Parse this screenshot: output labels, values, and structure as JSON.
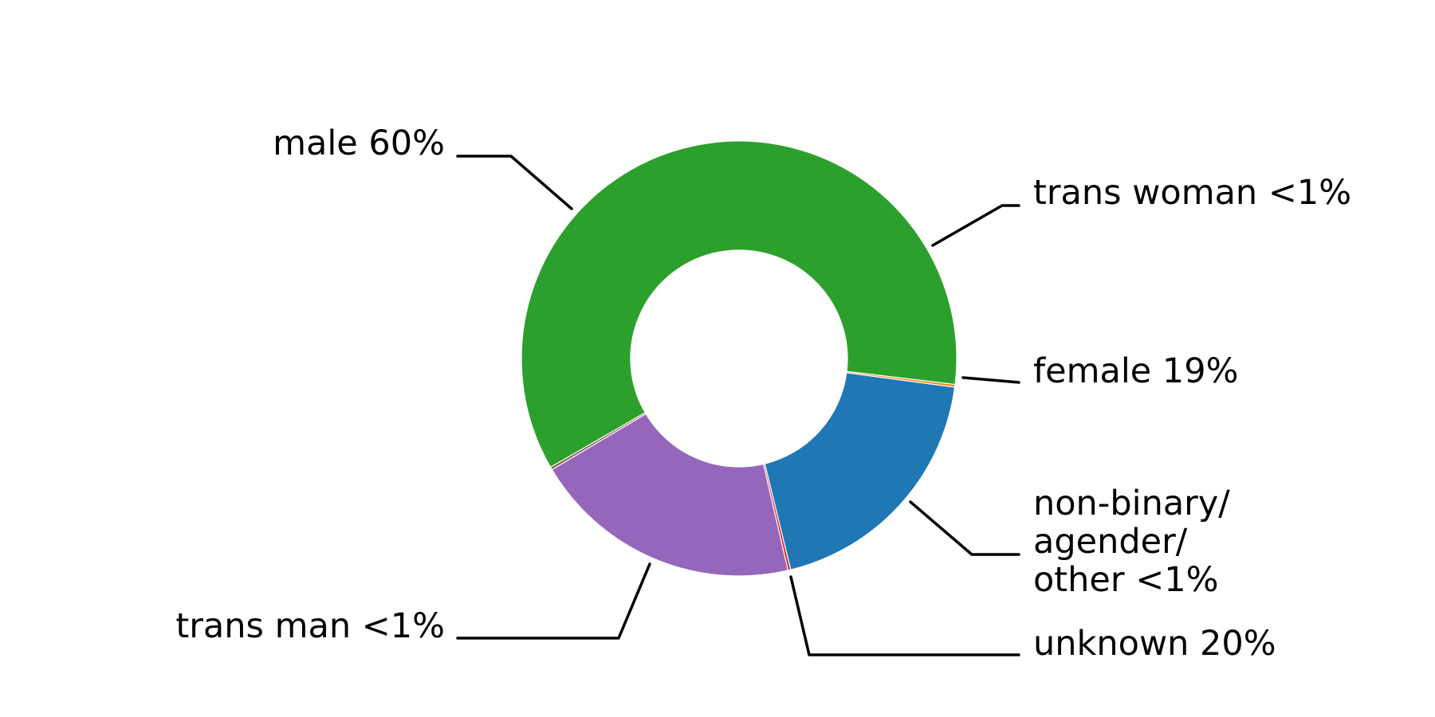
{
  "chart_data": {
    "type": "pie",
    "variant": "donut",
    "title": "",
    "slices": [
      {
        "label": "male 60%",
        "value": 60,
        "color": "#2ca02c"
      },
      {
        "label": "trans woman <1%",
        "value": 0.2,
        "color": "#ff7f0e"
      },
      {
        "label": "female 19%",
        "value": 19,
        "color": "#1f77b4"
      },
      {
        "label": "non-binary/\nagender/\nother <1%",
        "value": 0.2,
        "color": "#d62728"
      },
      {
        "label": "unknown 20%",
        "value": 20,
        "color": "#9467bd"
      },
      {
        "label": "trans man <1%",
        "value": 0.2,
        "color": "#8c564b"
      }
    ],
    "legend": "none"
  }
}
